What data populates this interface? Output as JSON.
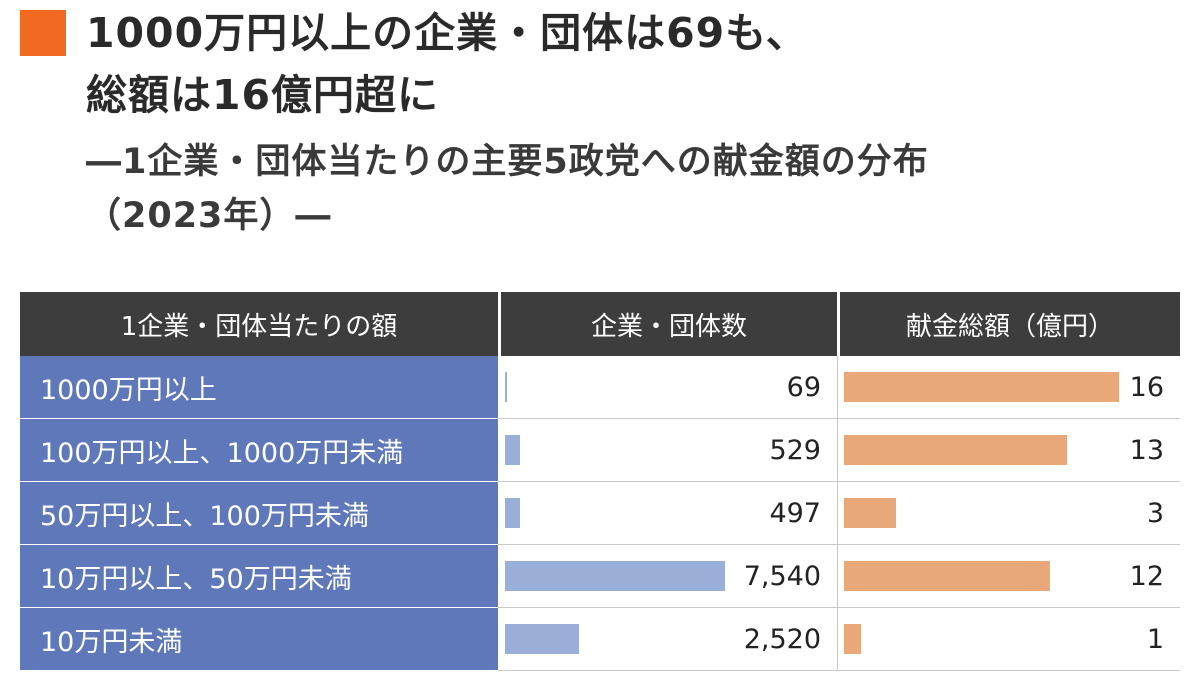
{
  "title": {
    "line1": "1000万円以上の企業・団体は69も、",
    "line2": "総額は16億円超に"
  },
  "subtitle": {
    "line1": "―1企業・団体当たりの主要5政党への献金額の分布",
    "line2": "（2023年）―"
  },
  "colors": {
    "accent": "#f26a21",
    "header_bg": "#3d3d3d",
    "label_bg": "#5e78ba",
    "count_bar": "#9aafd8",
    "amount_bar": "#e8a879"
  },
  "chart_data": {
    "type": "table",
    "columns": [
      "1企業・団体当たりの額",
      "企業・団体数",
      "献金総額（億円）"
    ],
    "rows": [
      {
        "category": "1000万円以上",
        "count": 69,
        "count_label": "69",
        "amount": 16,
        "amount_label": "16"
      },
      {
        "category": "100万円以上、1000万円未満",
        "count": 529,
        "count_label": "529",
        "amount": 13,
        "amount_label": "13"
      },
      {
        "category": "50万円以上、100万円未満",
        "count": 497,
        "count_label": "497",
        "amount": 3,
        "amount_label": "3"
      },
      {
        "category": "10万円以上、50万円未満",
        "count": 7540,
        "count_label": "7,540",
        "amount": 12,
        "amount_label": "12"
      },
      {
        "category": "10万円未満",
        "count": 2520,
        "count_label": "2,520",
        "amount": 1,
        "amount_label": "1"
      }
    ],
    "count_scale_max": 7540,
    "amount_scale_max": 16
  }
}
